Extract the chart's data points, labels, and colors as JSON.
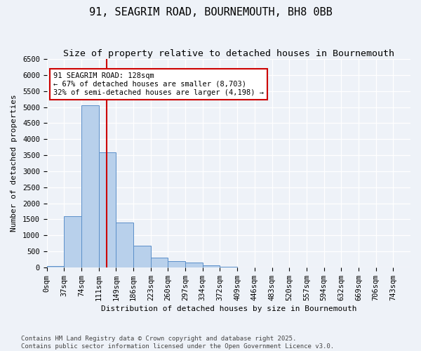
{
  "title": "91, SEAGRIM ROAD, BOURNEMOUTH, BH8 0BB",
  "subtitle": "Size of property relative to detached houses in Bournemouth",
  "xlabel": "Distribution of detached houses by size in Bournemouth",
  "ylabel": "Number of detached properties",
  "bin_labels": [
    "0sqm",
    "37sqm",
    "74sqm",
    "111sqm",
    "149sqm",
    "186sqm",
    "223sqm",
    "260sqm",
    "297sqm",
    "334sqm",
    "372sqm",
    "409sqm",
    "446sqm",
    "483sqm",
    "520sqm",
    "557sqm",
    "594sqm",
    "632sqm",
    "669sqm",
    "706sqm",
    "743sqm"
  ],
  "bar_values": [
    50,
    1600,
    5050,
    3600,
    1400,
    680,
    300,
    200,
    150,
    60,
    10,
    0,
    0,
    0,
    0,
    0,
    0,
    0,
    0,
    0,
    0
  ],
  "bar_color": "#b8d0eb",
  "bar_edge_color": "#5b8fc9",
  "property_line_x": 3.447,
  "annotation_text": "91 SEAGRIM ROAD: 128sqm\n← 67% of detached houses are smaller (8,703)\n32% of semi-detached houses are larger (4,198) →",
  "annotation_box_color": "#ffffff",
  "annotation_box_edge_color": "#cc0000",
  "line_color": "#cc0000",
  "ylim_max": 6500,
  "ytick_step": 500,
  "bg_color": "#eef2f8",
  "footer_text": "Contains HM Land Registry data © Crown copyright and database right 2025.\nContains public sector information licensed under the Open Government Licence v3.0.",
  "title_fontsize": 11,
  "subtitle_fontsize": 9.5,
  "axis_label_fontsize": 8,
  "tick_fontsize": 7.5,
  "footer_fontsize": 6.5,
  "annot_fontsize": 7.5
}
